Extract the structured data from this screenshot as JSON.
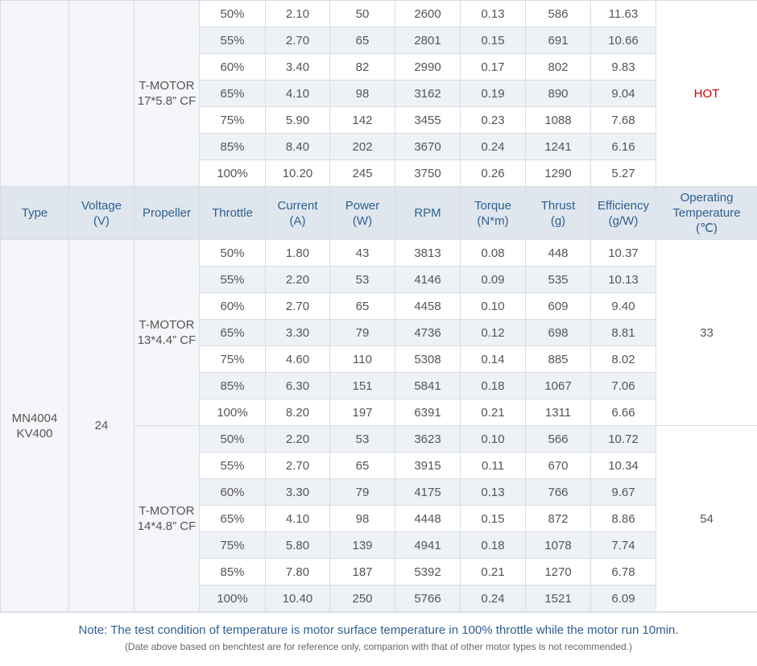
{
  "table": {
    "header": [
      [
        "Type"
      ],
      [
        "Voltage",
        "(V)"
      ],
      [
        "Propeller"
      ],
      [
        "Throttle"
      ],
      [
        "Current",
        "(A)"
      ],
      [
        "Power",
        "(W)"
      ],
      [
        "RPM"
      ],
      [
        "Torque",
        "(N*m)"
      ],
      [
        "Thrust",
        "(g)"
      ],
      [
        "Efficiency",
        "(g/W)"
      ],
      [
        "Operating",
        "Temperature",
        "(℃)"
      ]
    ],
    "groups": [
      {
        "propellers": [
          {
            "name": [
              "T-MOTOR",
              "17*5.8” CF"
            ],
            "temperature": "HOT",
            "rows": [
              [
                "50%",
                "2.10",
                "50",
                "2600",
                "0.13",
                "586",
                "11.63"
              ],
              [
                "55%",
                "2.70",
                "65",
                "2801",
                "0.15",
                "691",
                "10.66"
              ],
              [
                "60%",
                "3.40",
                "82",
                "2990",
                "0.17",
                "802",
                "9.83"
              ],
              [
                "65%",
                "4.10",
                "98",
                "3162",
                "0.19",
                "890",
                "9.04"
              ],
              [
                "75%",
                "5.90",
                "142",
                "3455",
                "0.23",
                "1088",
                "7.68"
              ],
              [
                "85%",
                "8.40",
                "202",
                "3670",
                "0.24",
                "1241",
                "6.16"
              ],
              [
                "100%",
                "10.20",
                "245",
                "3750",
                "0.26",
                "1290",
                "5.27"
              ]
            ]
          }
        ]
      },
      {
        "type": [
          "MN4004",
          "KV400"
        ],
        "voltage": "24",
        "propellers": [
          {
            "name": [
              "T-MOTOR",
              "13*4.4” CF"
            ],
            "temperature": "33",
            "rows": [
              [
                "50%",
                "1.80",
                "43",
                "3813",
                "0.08",
                "448",
                "10.37"
              ],
              [
                "55%",
                "2.20",
                "53",
                "4146",
                "0.09",
                "535",
                "10.13"
              ],
              [
                "60%",
                "2.70",
                "65",
                "4458",
                "0.10",
                "609",
                "9.40"
              ],
              [
                "65%",
                "3.30",
                "79",
                "4736",
                "0.12",
                "698",
                "8.81"
              ],
              [
                "75%",
                "4.60",
                "110",
                "5308",
                "0.14",
                "885",
                "8.02"
              ],
              [
                "85%",
                "6.30",
                "151",
                "5841",
                "0.18",
                "1067",
                "7.06"
              ],
              [
                "100%",
                "8.20",
                "197",
                "6391",
                "0.21",
                "1311",
                "6.66"
              ]
            ]
          },
          {
            "name": [
              "T-MOTOR",
              "14*4.8” CF"
            ],
            "temperature": "54",
            "rows": [
              [
                "50%",
                "2.20",
                "53",
                "3623",
                "0.10",
                "566",
                "10.72"
              ],
              [
                "55%",
                "2.70",
                "65",
                "3915",
                "0.11",
                "670",
                "10.34"
              ],
              [
                "60%",
                "3.30",
                "79",
                "4175",
                "0.13",
                "766",
                "9.67"
              ],
              [
                "65%",
                "4.10",
                "98",
                "4448",
                "0.15",
                "872",
                "8.86"
              ],
              [
                "75%",
                "5.80",
                "139",
                "4941",
                "0.18",
                "1078",
                "7.74"
              ],
              [
                "85%",
                "7.80",
                "187",
                "5392",
                "0.21",
                "1270",
                "6.78"
              ],
              [
                "100%",
                "10.40",
                "250",
                "5766",
                "0.24",
                "1521",
                "6.09"
              ]
            ]
          }
        ]
      }
    ]
  },
  "note": {
    "main": "Note: The test condition of temperature is motor surface temperature in 100% throttle while the motor run 10min.",
    "sub": "(Date above based on benchtest are for reference only, comparion with that of other motor types is not recommended.)"
  }
}
